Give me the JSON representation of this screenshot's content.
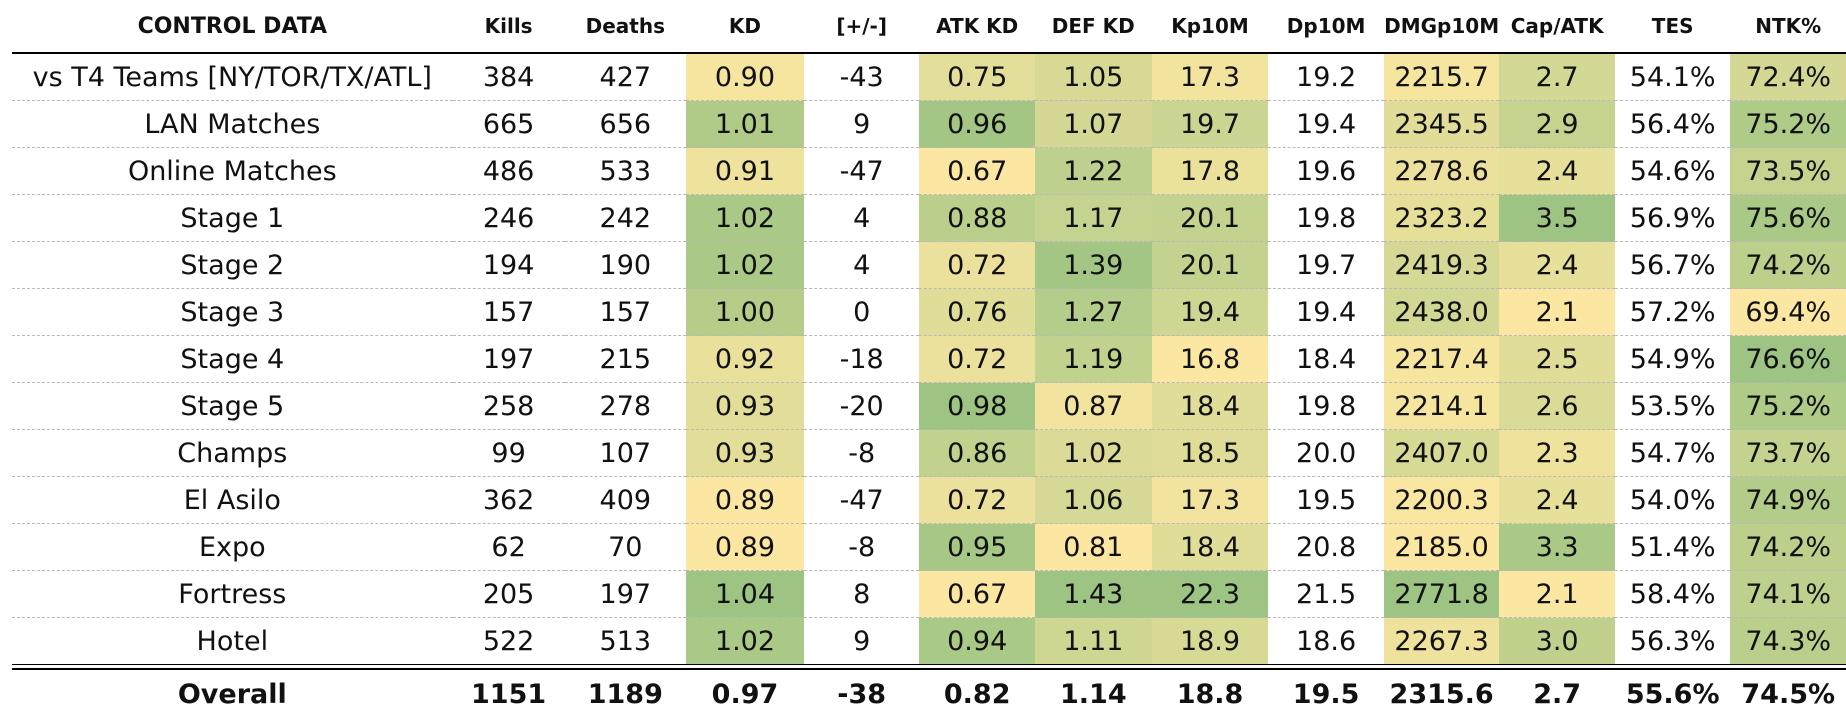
{
  "chart_data": {
    "type": "table",
    "title": "CONTROL DATA",
    "columns": [
      "CONTROL DATA",
      "Kills",
      "Deaths",
      "KD",
      "[+/-]",
      "ATK KD",
      "DEF KD",
      "Kp10M",
      "Dp10M",
      "DMGp10M",
      "Cap/ATK",
      "TES",
      "NTK%"
    ],
    "heatmap_columns": [
      "KD",
      "ATK KD",
      "DEF KD",
      "Kp10M",
      "DMGp10M",
      "Cap/ATK",
      "NTK%"
    ],
    "colors": {
      "low": "#fbe7a1",
      "high": "#9dc482"
    },
    "rows": [
      [
        "vs T4 Teams [NY/TOR/TX/ATL]",
        "384",
        "427",
        "0.90",
        "-43",
        "0.75",
        "1.05",
        "17.3",
        "19.2",
        "2215.7",
        "2.7",
        "54.1%",
        "72.4%"
      ],
      [
        "LAN Matches",
        "665",
        "656",
        "1.01",
        "9",
        "0.96",
        "1.07",
        "19.7",
        "19.4",
        "2345.5",
        "2.9",
        "56.4%",
        "75.2%"
      ],
      [
        "Online Matches",
        "486",
        "533",
        "0.91",
        "-47",
        "0.67",
        "1.22",
        "17.8",
        "19.6",
        "2278.6",
        "2.4",
        "54.6%",
        "73.5%"
      ],
      [
        "Stage 1",
        "246",
        "242",
        "1.02",
        "4",
        "0.88",
        "1.17",
        "20.1",
        "19.8",
        "2323.2",
        "3.5",
        "56.9%",
        "75.6%"
      ],
      [
        "Stage 2",
        "194",
        "190",
        "1.02",
        "4",
        "0.72",
        "1.39",
        "20.1",
        "19.7",
        "2419.3",
        "2.4",
        "56.7%",
        "74.2%"
      ],
      [
        "Stage 3",
        "157",
        "157",
        "1.00",
        "0",
        "0.76",
        "1.27",
        "19.4",
        "19.4",
        "2438.0",
        "2.1",
        "57.2%",
        "69.4%"
      ],
      [
        "Stage 4",
        "197",
        "215",
        "0.92",
        "-18",
        "0.72",
        "1.19",
        "16.8",
        "18.4",
        "2217.4",
        "2.5",
        "54.9%",
        "76.6%"
      ],
      [
        "Stage 5",
        "258",
        "278",
        "0.93",
        "-20",
        "0.98",
        "0.87",
        "18.4",
        "19.8",
        "2214.1",
        "2.6",
        "53.5%",
        "75.2%"
      ],
      [
        "Champs",
        "99",
        "107",
        "0.93",
        "-8",
        "0.86",
        "1.02",
        "18.5",
        "20.0",
        "2407.0",
        "2.3",
        "54.7%",
        "73.7%"
      ],
      [
        "El Asilo",
        "362",
        "409",
        "0.89",
        "-47",
        "0.72",
        "1.06",
        "17.3",
        "19.5",
        "2200.3",
        "2.4",
        "54.0%",
        "74.9%"
      ],
      [
        "Expo",
        "62",
        "70",
        "0.89",
        "-8",
        "0.95",
        "0.81",
        "18.4",
        "20.8",
        "2185.0",
        "3.3",
        "51.4%",
        "74.2%"
      ],
      [
        "Fortress",
        "205",
        "197",
        "1.04",
        "8",
        "0.67",
        "1.43",
        "22.3",
        "21.5",
        "2771.8",
        "2.1",
        "58.4%",
        "74.1%"
      ],
      [
        "Hotel",
        "522",
        "513",
        "1.02",
        "9",
        "0.94",
        "1.11",
        "18.9",
        "18.6",
        "2267.3",
        "3.0",
        "56.3%",
        "74.3%"
      ]
    ],
    "total": [
      "Overall",
      "1151",
      "1189",
      "0.97",
      "-38",
      "0.82",
      "1.14",
      "18.8",
      "19.5",
      "2315.6",
      "2.7",
      "55.6%",
      "74.5%"
    ]
  }
}
